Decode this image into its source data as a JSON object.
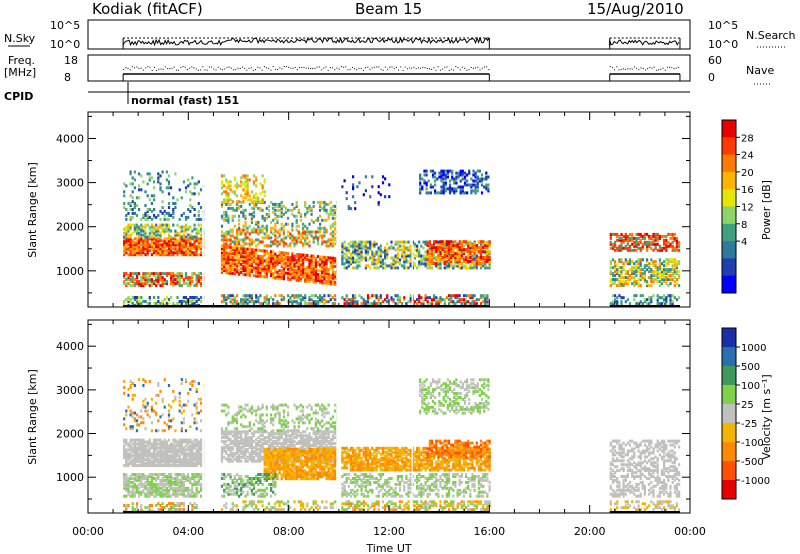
{
  "header": {
    "station": "Kodiak (fitACF)",
    "beam": "Beam 15",
    "date": "15/Aug/2010"
  },
  "strip": {
    "nsky_label": "N.Sky",
    "nsky_ticks": [
      "10^5",
      "10^0"
    ],
    "nsearch_label": "N.Search",
    "nsearch_ticks": [
      "10^5",
      "10^0"
    ],
    "freq_label_1": "Freq.",
    "freq_label_2": "[MHz]",
    "freq_ticks": [
      "18",
      "8"
    ],
    "nave_label": "Nave",
    "nave_ticks": [
      "60",
      "0"
    ],
    "cpid_label": "CPID",
    "cpid_text": "normal (fast) 151"
  },
  "chart_data": [
    {
      "type": "heatmap",
      "name": "power",
      "ylabel": "Slant Range [km]",
      "xlabel": "Time UT",
      "x_ticks": [
        "00:00",
        "04:00",
        "08:00",
        "12:00",
        "16:00",
        "20:00",
        "00:00"
      ],
      "xlim": [
        0,
        24
      ],
      "ylim": [
        180,
        4600
      ],
      "y_ticks": [
        1000,
        2000,
        3000,
        4000
      ],
      "colorbar": {
        "label": "Power [dB]",
        "ticks": [
          "28",
          "24",
          "20",
          "16",
          "12",
          "8",
          "4"
        ],
        "colors": [
          "#e60000",
          "#ff3a00",
          "#ff7a00",
          "#ffb400",
          "#e6e600",
          "#8fd36b",
          "#3fa080",
          "#2f7a9a",
          "#1e3fae",
          "#0000ff"
        ]
      },
      "data_intervals_hours": [
        [
          1.4,
          16.0
        ],
        [
          20.8,
          23.6
        ]
      ]
    },
    {
      "type": "heatmap",
      "name": "velocity",
      "ylabel": "Slant Range [km]",
      "xlabel": "Time UT",
      "x_ticks": [
        "00:00",
        "04:00",
        "08:00",
        "12:00",
        "16:00",
        "20:00",
        "00:00"
      ],
      "xlim": [
        0,
        24
      ],
      "ylim": [
        180,
        4600
      ],
      "y_ticks": [
        1000,
        2000,
        3000,
        4000
      ],
      "colorbar": {
        "label": "Velocity [m s⁻¹]",
        "ticks": [
          "1000",
          "500",
          "100",
          "25",
          "-25",
          "-100",
          "-500",
          "-1000"
        ],
        "colors": [
          "#1a2ea8",
          "#2c6fb0",
          "#3e9a5a",
          "#7fd04a",
          "#c0c0bc",
          "#f2b400",
          "#ff8a00",
          "#ff5000",
          "#e60000"
        ]
      },
      "data_intervals_hours": [
        [
          1.4,
          16.0
        ],
        [
          20.8,
          23.6
        ]
      ]
    }
  ]
}
